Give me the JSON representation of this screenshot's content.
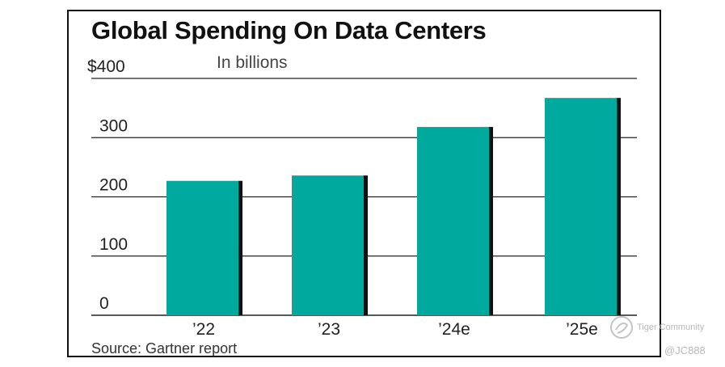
{
  "chart_data": {
    "type": "bar",
    "title": "Global Spending On Data Centers",
    "subtitle": "In billions",
    "categories": [
      "’22",
      "’23",
      "’24e",
      "’25e"
    ],
    "values": [
      227,
      236,
      318,
      367
    ],
    "ylim": [
      0,
      400
    ],
    "yticks": [
      0,
      100,
      200,
      300,
      400
    ],
    "ytick_labels": [
      "0",
      "100",
      "200",
      "300",
      "$400"
    ],
    "xlabel": "",
    "ylabel": "",
    "grid": true,
    "source": "Source: Gartner report",
    "colors": {
      "bar": "#00a99d",
      "bar_shadow": "#111111",
      "grid": "#222222"
    }
  },
  "watermark": {
    "brand": "Tiger Community",
    "user": "@JC888",
    "icon": "tiger-community-logo-icon"
  }
}
